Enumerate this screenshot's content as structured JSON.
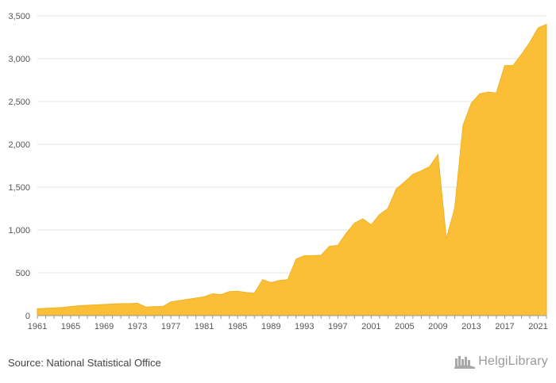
{
  "chart_data": {
    "type": "area",
    "title": "",
    "xlabel": "",
    "ylabel": "",
    "ylim": [
      0,
      3500
    ],
    "xlim": [
      1961,
      2022
    ],
    "grid": true,
    "legend": "none",
    "color": "#FABE37",
    "x_ticks": [
      1961,
      1965,
      1969,
      1973,
      1977,
      1981,
      1985,
      1989,
      1993,
      1997,
      2001,
      2005,
      2009,
      2013,
      2017,
      2021
    ],
    "y_ticks": [
      0,
      500,
      1000,
      1500,
      2000,
      2500,
      3000,
      3500
    ],
    "y_tick_labels": [
      "0",
      "500",
      "1,000",
      "1,500",
      "2,000",
      "2,500",
      "3,000",
      "3,500"
    ],
    "x": [
      1961,
      1962,
      1963,
      1964,
      1965,
      1966,
      1967,
      1968,
      1969,
      1970,
      1971,
      1972,
      1973,
      1974,
      1975,
      1976,
      1977,
      1978,
      1979,
      1980,
      1981,
      1982,
      1983,
      1984,
      1985,
      1986,
      1987,
      1988,
      1989,
      1990,
      1991,
      1992,
      1993,
      1994,
      1995,
      1996,
      1997,
      1998,
      1999,
      2000,
      2001,
      2002,
      2003,
      2004,
      2005,
      2006,
      2007,
      2008,
      2009,
      2010,
      2011,
      2012,
      2013,
      2014,
      2015,
      2016,
      2017,
      2018,
      2019,
      2020,
      2021,
      2022
    ],
    "values": [
      80,
      85,
      90,
      95,
      105,
      115,
      120,
      125,
      130,
      135,
      140,
      140,
      145,
      100,
      105,
      105,
      160,
      175,
      190,
      205,
      220,
      255,
      245,
      280,
      285,
      270,
      260,
      420,
      385,
      410,
      420,
      660,
      700,
      700,
      705,
      810,
      820,
      960,
      1080,
      1130,
      1060,
      1180,
      1250,
      1480,
      1560,
      1650,
      1690,
      1740,
      1880,
      900,
      1250,
      2220,
      2480,
      2590,
      2610,
      2600,
      2920,
      2920,
      3050,
      3190,
      3360,
      3400
    ]
  },
  "footer": {
    "source": "Source: National Statistical Office",
    "logo_text": "HelgiLibrary"
  }
}
